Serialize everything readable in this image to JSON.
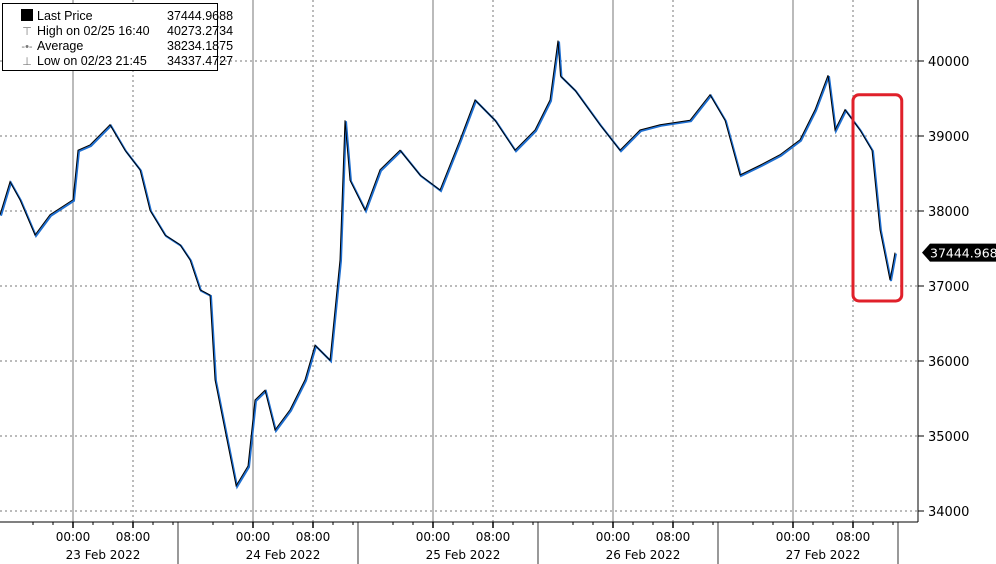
{
  "chart_data": {
    "type": "line",
    "title": "",
    "xlabel": "",
    "ylabel": "",
    "ylim": [
      33850,
      40800
    ],
    "yticks": [
      34000,
      35000,
      36000,
      37000,
      38000,
      39000,
      40000
    ],
    "x_time_ticks": [
      "00:00",
      "08:00"
    ],
    "x_day_labels": [
      "23 Feb 2022",
      "24 Feb 2022",
      "25 Feb 2022",
      "26 Feb 2022",
      "27 Feb 2022"
    ],
    "grid": true,
    "legend_placement": "top-left",
    "colors": {
      "line": "#000000",
      "shadow": "#1f6fd1",
      "highlight": "#e0202a"
    },
    "last_price_label": "37444.9688",
    "highlight_box": {
      "from": "2022-02-27T08:00",
      "to": "2022-02-27T14:30",
      "ymin": 36800,
      "ymax": 39550
    },
    "legend": [
      {
        "label": "Last Price",
        "value": "37444.9688",
        "icon": "filled-square"
      },
      {
        "label": "High on 02/25 16:40",
        "value": "40273.2734",
        "icon": "high-marker"
      },
      {
        "label": "Average",
        "value": "38234.1875",
        "icon": "average-marker"
      },
      {
        "label": "Low on 02/23 21:45",
        "value": "34337.4727",
        "icon": "low-marker"
      }
    ],
    "series": [
      {
        "points": [
          [
            "2022-02-22T14:16",
            37950
          ],
          [
            "2022-02-22T15:36",
            38390
          ],
          [
            "2022-02-22T16:56",
            38150
          ],
          [
            "2022-02-22T18:56",
            37680
          ],
          [
            "2022-02-22T20:56",
            37950
          ],
          [
            "2022-02-23T00:00",
            38150
          ],
          [
            "2022-02-23T00:40",
            38810
          ],
          [
            "2022-02-23T02:16",
            38880
          ],
          [
            "2022-02-23T04:56",
            39150
          ],
          [
            "2022-02-23T06:56",
            38810
          ],
          [
            "2022-02-23T08:56",
            38550
          ],
          [
            "2022-02-23T10:16",
            38010
          ],
          [
            "2022-02-23T12:16",
            37680
          ],
          [
            "2022-02-23T14:16",
            37550
          ],
          [
            "2022-02-23T15:36",
            37350
          ],
          [
            "2022-02-23T16:56",
            36950
          ],
          [
            "2022-02-23T18:16",
            36880
          ],
          [
            "2022-02-23T18:56",
            35750
          ],
          [
            "2022-02-23T20:16",
            35080
          ],
          [
            "2022-02-23T21:45",
            34337
          ],
          [
            "2022-02-23T23:20",
            34600
          ],
          [
            "2022-02-24T00:16",
            35480
          ],
          [
            "2022-02-24T01:36",
            35610
          ],
          [
            "2022-02-24T02:56",
            35080
          ],
          [
            "2022-02-24T04:56",
            35350
          ],
          [
            "2022-02-24T06:56",
            35750
          ],
          [
            "2022-02-24T08:16",
            36210
          ],
          [
            "2022-02-24T10:16",
            36010
          ],
          [
            "2022-02-24T11:36",
            37350
          ],
          [
            "2022-02-24T12:16",
            39210
          ],
          [
            "2022-02-24T12:56",
            38410
          ],
          [
            "2022-02-24T14:56",
            38010
          ],
          [
            "2022-02-24T16:56",
            38550
          ],
          [
            "2022-02-24T19:36",
            38810
          ],
          [
            "2022-02-24T22:16",
            38480
          ],
          [
            "2022-02-25T00:56",
            38280
          ],
          [
            "2022-02-25T03:36",
            38950
          ],
          [
            "2022-02-25T05:36",
            39480
          ],
          [
            "2022-02-25T08:16",
            39210
          ],
          [
            "2022-02-25T10:56",
            38810
          ],
          [
            "2022-02-25T13:36",
            39080
          ],
          [
            "2022-02-25T15:36",
            39480
          ],
          [
            "2022-02-25T16:40",
            40273
          ],
          [
            "2022-02-25T17:00",
            39800
          ],
          [
            "2022-02-25T18:56",
            39610
          ],
          [
            "2022-02-25T22:16",
            39150
          ],
          [
            "2022-02-26T00:56",
            38810
          ],
          [
            "2022-02-26T03:36",
            39080
          ],
          [
            "2022-02-26T06:16",
            39150
          ],
          [
            "2022-02-26T10:16",
            39210
          ],
          [
            "2022-02-26T12:56",
            39550
          ],
          [
            "2022-02-26T14:56",
            39210
          ],
          [
            "2022-02-26T16:56",
            38480
          ],
          [
            "2022-02-26T19:36",
            38610
          ],
          [
            "2022-02-26T22:16",
            38750
          ],
          [
            "2022-02-27T00:56",
            38950
          ],
          [
            "2022-02-27T02:56",
            39350
          ],
          [
            "2022-02-27T04:40",
            39810
          ],
          [
            "2022-02-27T05:36",
            39080
          ],
          [
            "2022-02-27T06:56",
            39350
          ],
          [
            "2022-02-27T08:56",
            39080
          ],
          [
            "2022-02-27T10:32",
            38810
          ],
          [
            "2022-02-27T11:36",
            37750
          ],
          [
            "2022-02-27T12:56",
            37080
          ],
          [
            "2022-02-27T13:36",
            37445
          ]
        ]
      }
    ]
  }
}
